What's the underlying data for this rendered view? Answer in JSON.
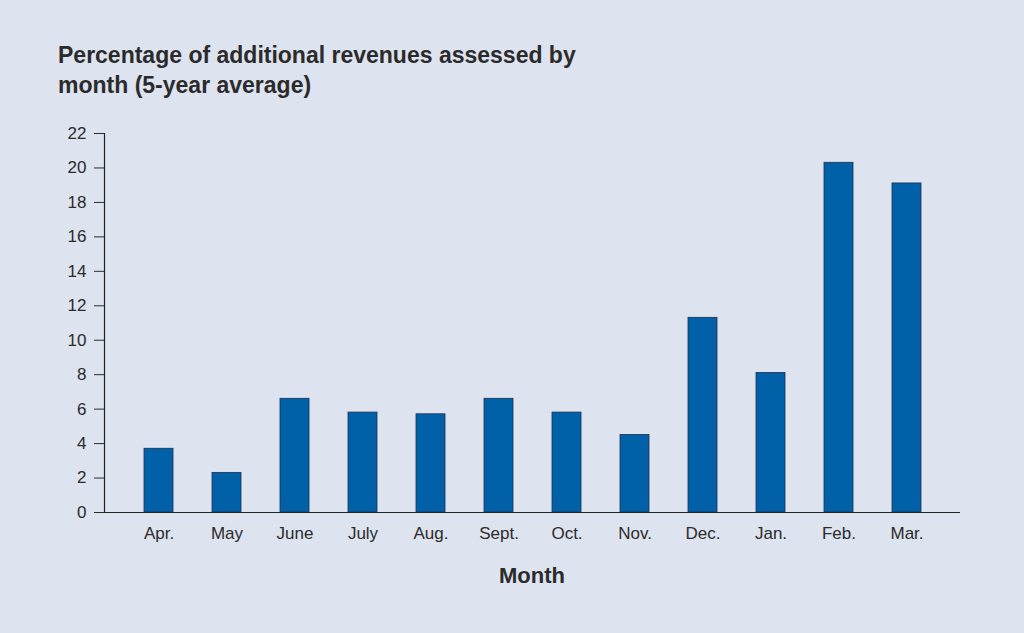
{
  "chart_data": {
    "type": "bar",
    "title": "Percentage of additional revenues assessed by month (5-year average)",
    "x_label": "Month",
    "categories": [
      "Apr.",
      "May",
      "June",
      "July",
      "Aug.",
      "Sept.",
      "Oct.",
      "Nov.",
      "Dec.",
      "Jan.",
      "Feb.",
      "Mar."
    ],
    "values": [
      3.7,
      2.3,
      6.6,
      5.8,
      5.7,
      6.6,
      5.8,
      4.5,
      11.3,
      8.1,
      20.3,
      19.1
    ],
    "color": "#0061a8",
    "ylim": [
      0,
      22
    ],
    "yticks": [
      0,
      2,
      4,
      6,
      8,
      10,
      12,
      14,
      16,
      18,
      20,
      22
    ],
    "grid": false
  }
}
